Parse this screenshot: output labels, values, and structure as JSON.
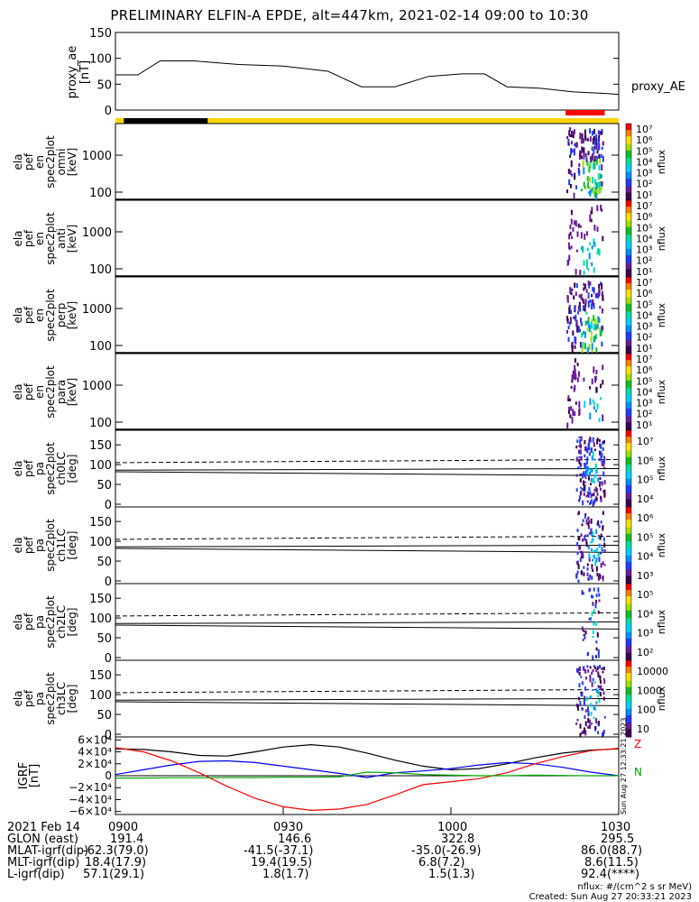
{
  "title": "PRELIMINARY ELFIN-A EPDE, alt=447km, 2021-02-14 09:00 to 10:30",
  "colors": {
    "axis": "#000000",
    "bar_gold": "#ffd700",
    "bar_black": "#000000",
    "bar_red": "#ff0000",
    "bx": "#000000",
    "by": "#0000ff",
    "bz": "#ff0000",
    "bmag": "#00aa00"
  },
  "chart_data": [
    {
      "type": "line",
      "name": "proxy_ae",
      "ylabel": "proxy_ae [nT]",
      "ylim": [
        0,
        150
      ],
      "yticks": [
        "150",
        "100",
        "50",
        "0"
      ],
      "series_label": "proxy_AE",
      "x_minutes": [
        0,
        4,
        8,
        14,
        22,
        30,
        38,
        44,
        50,
        56,
        62,
        66,
        70,
        76,
        82,
        88,
        90
      ],
      "values": [
        68,
        68,
        95,
        95,
        88,
        85,
        75,
        45,
        45,
        65,
        70,
        70,
        45,
        42,
        35,
        32,
        30
      ]
    },
    {
      "type": "heatmap",
      "name": "en_spec_omni",
      "ylabel": [
        "ela",
        "pef",
        "en",
        "spec2plot",
        "omni",
        "[keV]"
      ],
      "yticks": [
        "1000",
        "100"
      ],
      "colorbar": {
        "label": "nflux",
        "ticks": [
          "10⁷",
          "10⁶",
          "10⁵",
          "10⁴",
          "10³",
          "10²",
          "10¹"
        ]
      }
    },
    {
      "type": "heatmap",
      "name": "en_spec_anti",
      "ylabel": [
        "ela",
        "pef",
        "en",
        "spec2plot",
        "anti",
        "[keV]"
      ],
      "yticks": [
        "1000",
        "100"
      ],
      "colorbar": {
        "label": "nflux",
        "ticks": [
          "10⁷",
          "10⁶",
          "10⁵",
          "10⁴",
          "10³",
          "10²",
          "10¹"
        ]
      }
    },
    {
      "type": "heatmap",
      "name": "en_spec_perp",
      "ylabel": [
        "ela",
        "pef",
        "en",
        "spec2plot",
        "perp",
        "[keV]"
      ],
      "yticks": [
        "1000",
        "100"
      ],
      "colorbar": {
        "label": "nflux",
        "ticks": [
          "10⁷",
          "10⁶",
          "10⁵",
          "10⁴",
          "10³",
          "10²",
          "10¹"
        ]
      }
    },
    {
      "type": "heatmap",
      "name": "en_spec_para",
      "ylabel": [
        "ela",
        "pef",
        "en",
        "spec2plot",
        "para",
        "[keV]"
      ],
      "yticks": [
        "1000",
        "100"
      ],
      "colorbar": {
        "label": "nflux",
        "ticks": [
          "10⁷",
          "10⁶",
          "10⁵",
          "10⁴",
          "10³",
          "10²",
          "10¹"
        ]
      }
    },
    {
      "type": "heatmap",
      "name": "pa_spec_ch0",
      "ylabel": [
        "ela",
        "pef",
        "pa",
        "spec2plot",
        "ch0LC",
        "[deg]"
      ],
      "yticks": [
        "150",
        "100",
        "50",
        "0"
      ],
      "ylim": [
        0,
        180
      ],
      "lc_solid": 86,
      "lc_dashed": 105,
      "colorbar": {
        "label": "nflux",
        "ticks": [
          "10⁷",
          "10⁶",
          "10⁵",
          "10⁴"
        ]
      }
    },
    {
      "type": "heatmap",
      "name": "pa_spec_ch1",
      "ylabel": [
        "ela",
        "pef",
        "pa",
        "spec2plot",
        "ch1LC",
        "[deg]"
      ],
      "yticks": [
        "150",
        "100",
        "50",
        "0"
      ],
      "ylim": [
        0,
        180
      ],
      "lc_solid": 86,
      "lc_dashed": 105,
      "colorbar": {
        "label": "nflux",
        "ticks": [
          "10⁶",
          "10⁵",
          "10⁴",
          "10³"
        ]
      }
    },
    {
      "type": "heatmap",
      "name": "pa_spec_ch2",
      "ylabel": [
        "ela",
        "pef",
        "pa",
        "spec2plot",
        "ch2LC",
        "[deg]"
      ],
      "yticks": [
        "150",
        "100",
        "50",
        "0"
      ],
      "ylim": [
        0,
        180
      ],
      "lc_solid": 86,
      "lc_dashed": 105,
      "colorbar": {
        "label": "nflux",
        "ticks": [
          "10⁵",
          "10⁴",
          "10³",
          "10²"
        ]
      }
    },
    {
      "type": "heatmap",
      "name": "pa_spec_ch3",
      "ylabel": [
        "ela",
        "pef",
        "pa",
        "spec2plot",
        "ch3LC",
        "[deg]"
      ],
      "yticks": [
        "150",
        "100",
        "50",
        "0"
      ],
      "ylim": [
        0,
        180
      ],
      "lc_solid": 86,
      "lc_dashed": 105,
      "colorbar": {
        "label": "nflux",
        "ticks": [
          "10000",
          "1000",
          "100",
          "10"
        ]
      }
    },
    {
      "type": "line",
      "name": "igrf",
      "ylabel": "IGRF [nT]",
      "yticks": [
        "6×10⁴",
        "4×10⁴",
        "2×10⁴",
        "0",
        "−2×10⁴",
        "−4×10⁴",
        "−6×10⁴"
      ],
      "ylim": [
        -60000,
        60000
      ],
      "x_minutes": [
        0,
        5,
        10,
        15,
        20,
        25,
        30,
        35,
        40,
        45,
        50,
        55,
        60,
        65,
        70,
        75,
        80,
        85,
        90
      ],
      "series": [
        {
          "name": "x",
          "values": [
            45000,
            44000,
            40000,
            34000,
            33000,
            40000,
            48000,
            52000,
            48000,
            38000,
            26000,
            16000,
            10000,
            12000,
            20000,
            30000,
            38000,
            43000,
            45000
          ]
        },
        {
          "name": "y",
          "values": [
            2000,
            10000,
            18000,
            24000,
            25000,
            22000,
            16000,
            10000,
            4000,
            -3000,
            5000,
            8000,
            12000,
            18000,
            22000,
            20000,
            14000,
            6000,
            0
          ]
        },
        {
          "name": "z",
          "values": [
            47000,
            40000,
            25000,
            5000,
            -18000,
            -38000,
            -52000,
            -58000,
            -56000,
            -48000,
            -32000,
            -15000,
            -10000,
            -5000,
            5000,
            20000,
            32000,
            42000,
            46000
          ]
        },
        {
          "name": "mag",
          "values": [
            -4000,
            -4000,
            -3500,
            -3500,
            -3000,
            -3000,
            -2500,
            -2500,
            -2000,
            6000,
            5000,
            2000,
            1000,
            0,
            0,
            1000,
            500,
            0,
            0
          ]
        }
      ],
      "legend": [
        "Z",
        "N"
      ],
      "side_text": "Sun Aug 27 12:33:21 2023"
    }
  ],
  "time_axis": {
    "labels": [
      "0900",
      "0930",
      "1000",
      "1030"
    ],
    "start": "0900",
    "end": "1030"
  },
  "ephemeris": {
    "rows": [
      {
        "label": "2021 Feb 14",
        "values": [
          "0900",
          "0930",
          "1000",
          "1030"
        ]
      },
      {
        "label": "GLON (east)",
        "values": [
          "191.4",
          "146.6",
          "322.8",
          "295.5"
        ]
      },
      {
        "label": "MLAT-igrf(dip)",
        "values": [
          "-62.3(79.0)",
          "-41.5(-37.1)",
          "-35.0(-26.9)",
          "86.0(88.7)"
        ]
      },
      {
        "label": "MLT-igrf(dip)",
        "values": [
          "18.4(17.9)",
          "19.4(19.5)",
          "6.8(7.2)",
          "8.6(11.5)"
        ]
      },
      {
        "label": "L-igrf(dip)",
        "values": [
          "57.1(29.1)",
          "1.8(1.7)",
          "1.5(1.3)",
          "92.4(****)"
        ]
      }
    ]
  },
  "footer": {
    "units": "nflux: #/(cm^2 s sr MeV)",
    "created": "Created: Sun Aug 27 20:33:21 2023"
  }
}
